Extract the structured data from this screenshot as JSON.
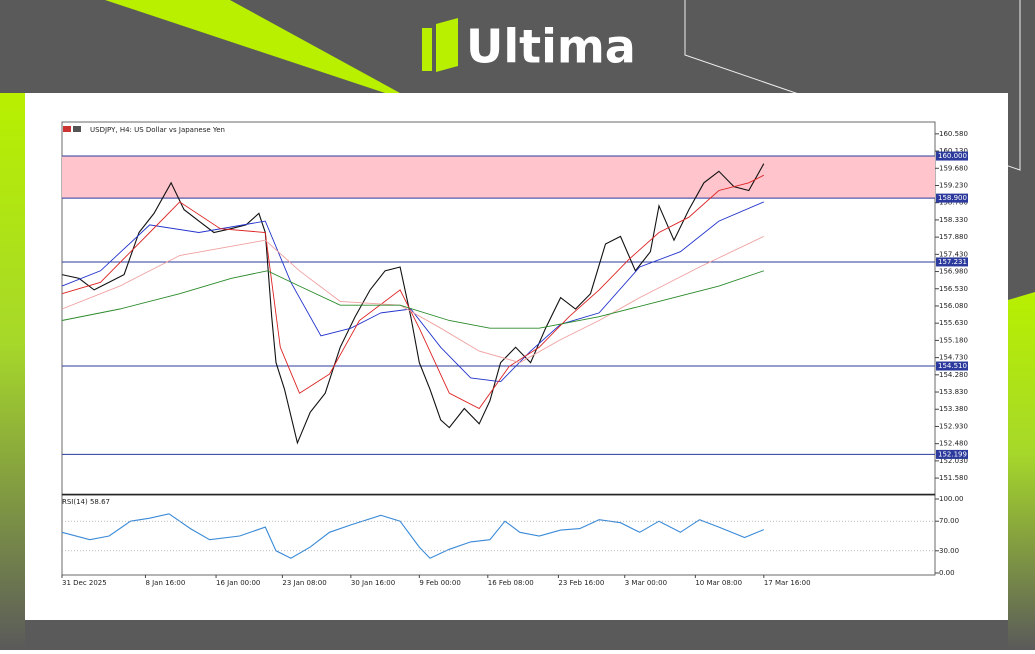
{
  "header": {
    "logo": "Ultima"
  },
  "chart_data": [
    {
      "type": "line",
      "title": "USDJPY, H4: US Dollar vs Japanese Yen",
      "xlim": [
        0,
        408
      ],
      "ylim": [
        151.19,
        160.89
      ],
      "yticks": [
        {
          "value": 160.58,
          "label": "160.580"
        },
        {
          "value": 160.13,
          "label": "160.130"
        },
        {
          "value": 159.68,
          "label": "159.680"
        },
        {
          "value": 159.23,
          "label": "159.230"
        },
        {
          "value": 158.78,
          "label": "158.780"
        },
        {
          "value": 158.33,
          "label": "158.330"
        },
        {
          "value": 157.88,
          "label": "157.880"
        },
        {
          "value": 157.43,
          "label": "157.430"
        },
        {
          "value": 156.98,
          "label": "156.980"
        },
        {
          "value": 156.53,
          "label": "156.530"
        },
        {
          "value": 156.08,
          "label": "156.080"
        },
        {
          "value": 155.63,
          "label": "155.630"
        },
        {
          "value": 155.18,
          "label": "155.180"
        },
        {
          "value": 154.73,
          "label": "154.730"
        },
        {
          "value": 154.28,
          "label": "154.280"
        },
        {
          "value": 153.83,
          "label": "153.830"
        },
        {
          "value": 153.38,
          "label": "153.380"
        },
        {
          "value": 152.93,
          "label": "152.930"
        },
        {
          "value": 152.48,
          "label": "152.480"
        },
        {
          "value": 152.03,
          "label": "152.030"
        },
        {
          "value": 151.58,
          "label": "151.580"
        }
      ],
      "levels": [
        {
          "value": 160.0,
          "label": "160.000"
        },
        {
          "value": 158.9,
          "label": "158.900"
        },
        {
          "value": 157.231,
          "label": "157.231"
        },
        {
          "value": 154.51,
          "label": "154.510"
        },
        {
          "value": 152.199,
          "label": "152.199"
        }
      ],
      "zone_color": "#ffc4cc",
      "level_color": "#2b3a9c",
      "series": [
        {
          "color": "#111111",
          "x": [
            0,
            8,
            15,
            22,
            29,
            36,
            43,
            51,
            57,
            64,
            71,
            79,
            86,
            92,
            95,
            98,
            100,
            104,
            110,
            116,
            123,
            130,
            137,
            144,
            151,
            158,
            163,
            167,
            172,
            177,
            181,
            188,
            195,
            200,
            205,
            212,
            219,
            226,
            233,
            240,
            247,
            254,
            261,
            268,
            275,
            279,
            286,
            293,
            300,
            307,
            314,
            321,
            328
          ],
          "values": [
            156.9,
            156.8,
            156.5,
            156.7,
            156.9,
            158.0,
            158.5,
            159.3,
            158.6,
            158.3,
            158.0,
            158.1,
            158.2,
            158.5,
            158.0,
            155.8,
            154.6,
            153.9,
            152.5,
            153.3,
            153.8,
            155.0,
            155.8,
            156.5,
            157.0,
            157.1,
            155.8,
            154.6,
            153.9,
            153.1,
            152.9,
            153.4,
            153.0,
            153.6,
            154.6,
            155.0,
            154.6,
            155.5,
            156.3,
            156.0,
            156.4,
            157.7,
            157.9,
            157.0,
            157.5,
            158.7,
            157.8,
            158.6,
            159.3,
            159.6,
            159.2,
            159.1,
            159.8
          ]
        },
        {
          "color": "#2233cc",
          "x": [
            0,
            18,
            41,
            64,
            95,
            107,
            121,
            135,
            149,
            163,
            177,
            191,
            205,
            219,
            233,
            251,
            270,
            289,
            307,
            328
          ],
          "values": [
            156.6,
            157.0,
            158.2,
            158.0,
            158.3,
            156.7,
            155.3,
            155.5,
            155.9,
            156.0,
            155.0,
            154.2,
            154.1,
            154.9,
            155.6,
            155.9,
            157.1,
            157.5,
            158.3,
            158.8
          ]
        },
        {
          "color": "#dd2222",
          "x": [
            0,
            18,
            41,
            55,
            74,
            95,
            102,
            111,
            125,
            139,
            158,
            167,
            181,
            195,
            209,
            223,
            237,
            251,
            265,
            279,
            293,
            307,
            321,
            328
          ],
          "values": [
            156.4,
            156.7,
            158.0,
            158.8,
            158.1,
            158.0,
            155.0,
            153.8,
            154.3,
            155.7,
            156.5,
            155.5,
            153.8,
            153.4,
            154.5,
            155.0,
            155.8,
            156.5,
            157.3,
            158.0,
            158.4,
            159.1,
            159.3,
            159.5
          ]
        },
        {
          "color": "#f0a0a0",
          "x": [
            0,
            27,
            55,
            95,
            111,
            130,
            158,
            177,
            195,
            214,
            233,
            251,
            270,
            298,
            328
          ],
          "values": [
            156.0,
            156.6,
            157.4,
            157.8,
            157.0,
            156.2,
            156.1,
            155.5,
            154.9,
            154.6,
            155.2,
            155.7,
            156.3,
            157.1,
            157.9
          ]
        },
        {
          "color": "#2a8a2a",
          "x": [
            0,
            27,
            55,
            79,
            96,
            111,
            130,
            158,
            181,
            200,
            223,
            251,
            279,
            307,
            328
          ],
          "values": [
            155.7,
            156.0,
            156.4,
            156.8,
            157.0,
            156.6,
            156.1,
            156.1,
            155.7,
            155.5,
            155.5,
            155.8,
            156.2,
            156.6,
            157.0
          ]
        }
      ]
    },
    {
      "type": "line",
      "title": "RSI(14) 58.67",
      "xlim": [
        0,
        408
      ],
      "ylim": [
        0,
        100
      ],
      "yticks": [
        {
          "value": 100,
          "label": "100.00"
        },
        {
          "value": 70,
          "label": "70.00"
        },
        {
          "value": 30,
          "label": "30.00"
        },
        {
          "value": 0,
          "label": "0.00"
        }
      ],
      "xticks": [
        {
          "value": 0,
          "label": "31 Dec 2025"
        },
        {
          "value": 39,
          "label": "8 Jan 16:00"
        },
        {
          "value": 72,
          "label": "16 Jan 00:00"
        },
        {
          "value": 103,
          "label": "23 Jan 08:00"
        },
        {
          "value": 135,
          "label": "30 Jan 16:00"
        },
        {
          "value": 167,
          "label": "9 Feb 00:00"
        },
        {
          "value": 199,
          "label": "16 Feb 08:00"
        },
        {
          "value": 232,
          "label": "23 Feb 16:00"
        },
        {
          "value": 263,
          "label": "3 Mar 00:00"
        },
        {
          "value": 296,
          "label": "10 Mar 08:00"
        },
        {
          "value": 328,
          "label": "17 Mar 16:00"
        }
      ],
      "series": [
        {
          "color": "#3a8ad8",
          "x": [
            0,
            13,
            22,
            32,
            41,
            50,
            60,
            69,
            83,
            95,
            100,
            107,
            116,
            125,
            135,
            149,
            158,
            167,
            172,
            181,
            191,
            200,
            207,
            214,
            223,
            233,
            242,
            251,
            261,
            270,
            279,
            289,
            298,
            307,
            319,
            328
          ],
          "values": [
            55,
            45,
            50,
            70,
            74,
            80,
            60,
            45,
            50,
            62,
            30,
            20,
            35,
            55,
            65,
            78,
            70,
            35,
            20,
            32,
            42,
            45,
            70,
            55,
            50,
            58,
            60,
            72,
            68,
            55,
            70,
            55,
            72,
            62,
            48,
            58.67
          ]
        }
      ]
    }
  ]
}
